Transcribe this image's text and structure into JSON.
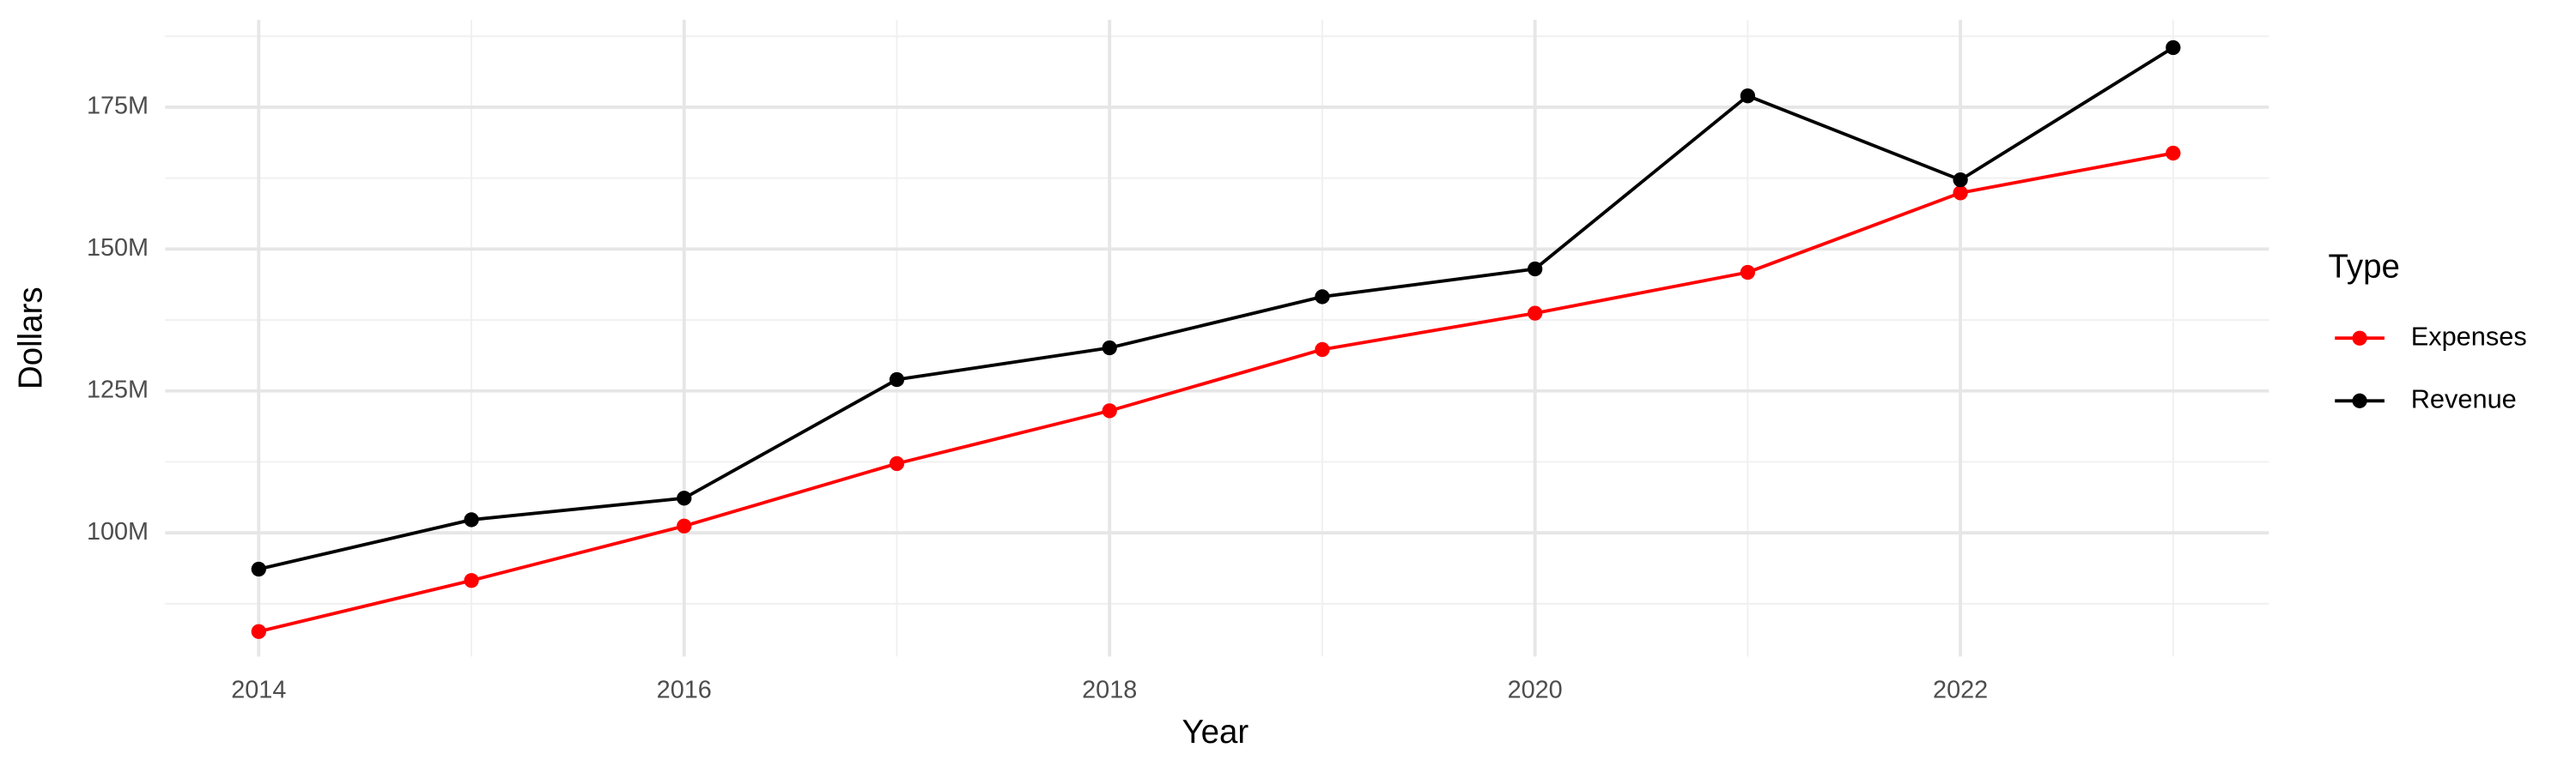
{
  "chart_data": {
    "type": "line",
    "x_label": "Year",
    "y_label": "Dollars",
    "legend_title": "Type",
    "x": [
      2014,
      2015,
      2016,
      2017,
      2018,
      2019,
      2020,
      2021,
      2022,
      2023
    ],
    "series": [
      {
        "name": "Expenses",
        "color": "#ff0000",
        "values": [
          82.6,
          91.6,
          101.2,
          112.2,
          121.5,
          132.3,
          138.7,
          145.9,
          159.9,
          166.9
        ]
      },
      {
        "name": "Revenue",
        "color": "#000000",
        "values": [
          93.6,
          102.3,
          106.1,
          127.0,
          132.6,
          141.6,
          146.5,
          177.0,
          162.2,
          185.5
        ]
      }
    ],
    "xlim": [
      2013.56,
      2023.45
    ],
    "xticks": [
      2014,
      2016,
      2018,
      2020,
      2022
    ],
    "minor_xticks": [
      2015,
      2017,
      2019,
      2021,
      2023
    ],
    "ylim": [
      78.2,
      190.4
    ],
    "yticks": [
      {
        "value": 100,
        "label": "100M"
      },
      {
        "value": 125,
        "label": "125M"
      },
      {
        "value": 150,
        "label": "150M"
      },
      {
        "value": 175,
        "label": "175M"
      }
    ],
    "minor_yticks": [
      87.5,
      112.5,
      137.5,
      162.5,
      187.5
    ],
    "grid": true,
    "legend_position": "right"
  }
}
